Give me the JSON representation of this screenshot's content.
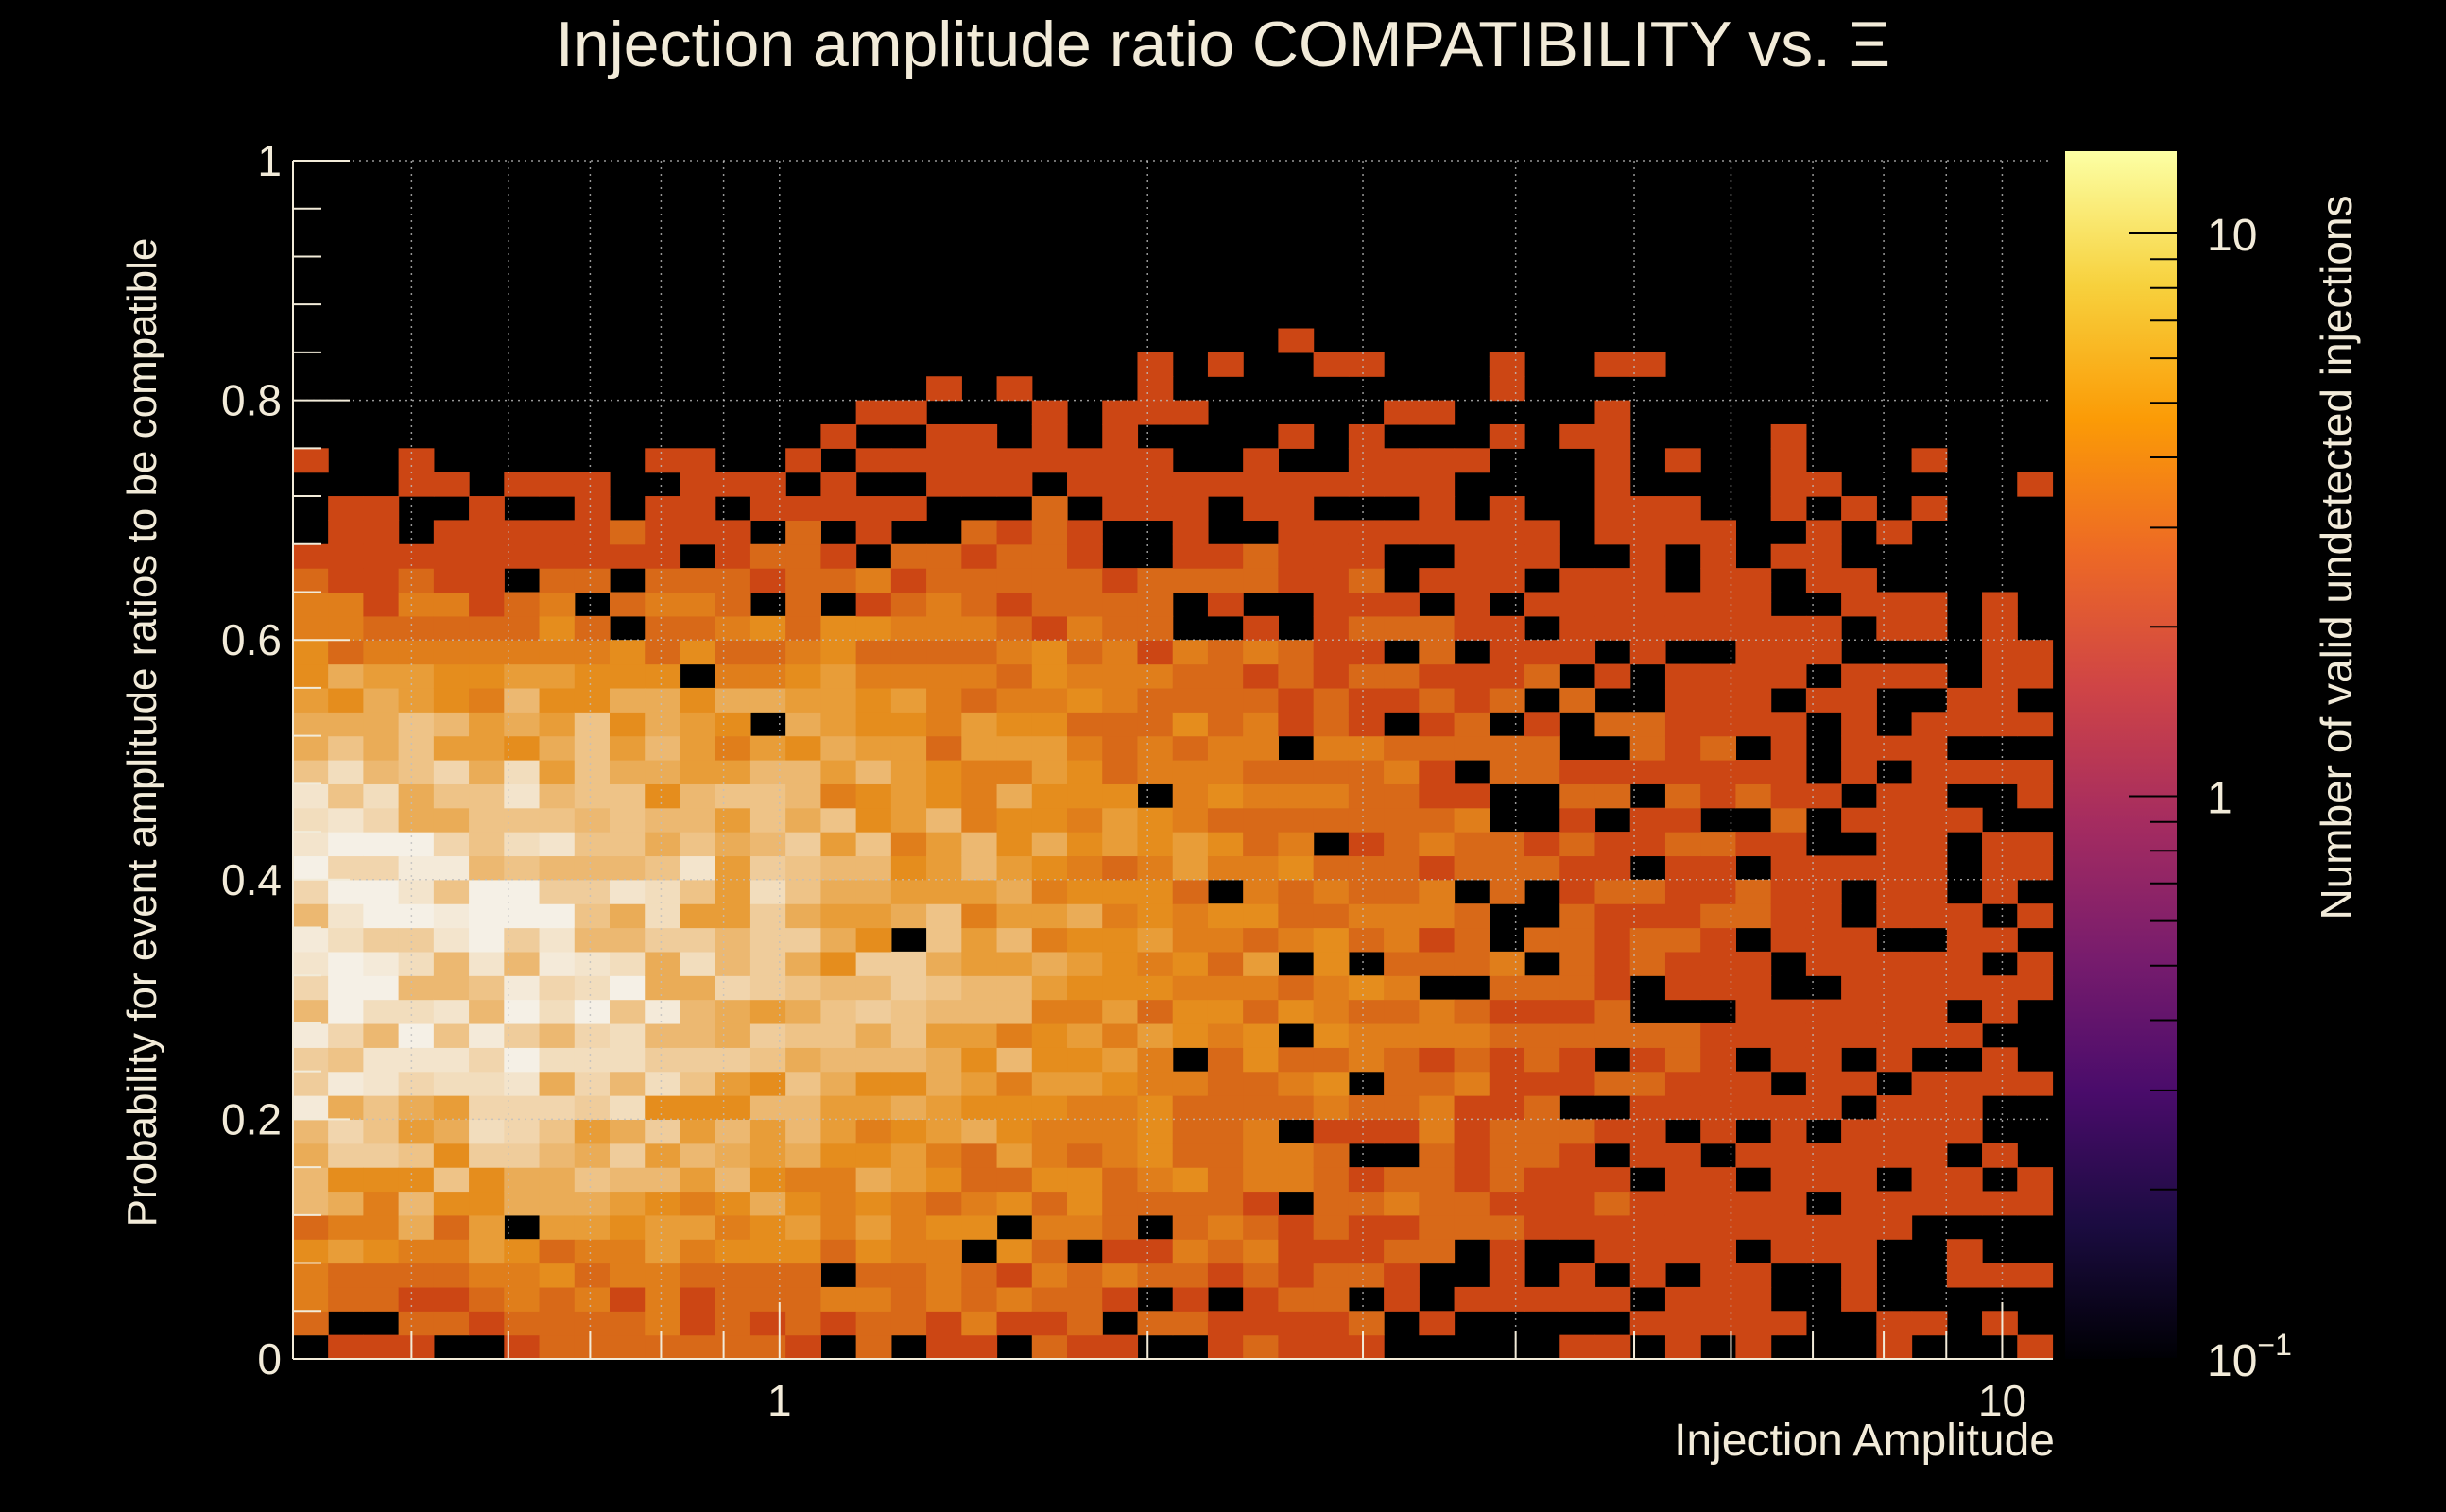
{
  "chart_data": {
    "type": "heatmap",
    "title": "Injection amplitude ratio COMPATIBILITY vs.  Ξ",
    "xlabel": "Injection Amplitude",
    "ylabel": "Probability for event amplitude ratios to be compatible",
    "colorbar_label": "Number of valid undetected injections",
    "x_scale": "log",
    "x_range": [
      0.4,
      11
    ],
    "y_range": [
      0,
      1
    ],
    "z_scale": "log",
    "z_range": [
      0.1,
      14
    ],
    "grid": true,
    "x_ticks": [
      {
        "value": 1,
        "label": "1"
      },
      {
        "value": 10,
        "label": "10"
      }
    ],
    "y_ticks": [
      {
        "value": 0,
        "label": "0"
      },
      {
        "value": 0.2,
        "label": "0.2"
      },
      {
        "value": 0.4,
        "label": "0.4"
      },
      {
        "value": 0.6,
        "label": "0.6"
      },
      {
        "value": 0.8,
        "label": "0.8"
      },
      {
        "value": 1,
        "label": "1"
      }
    ],
    "z_ticks": [
      {
        "value": 0.1,
        "label": "10",
        "exp": "−1"
      },
      {
        "value": 1,
        "label": "1",
        "exp": ""
      },
      {
        "value": 10,
        "label": "10",
        "exp": ""
      }
    ],
    "bins": {
      "nx": 50,
      "ny": 50,
      "x_log_min": -0.398,
      "x_log_max": 1.041,
      "y_min": 0,
      "y_max": 1,
      "model": {
        "peak_count": 12.5,
        "peak_log_x": -0.2,
        "peak_y": 0.34,
        "x_decay": 0.95,
        "y_width": 0.22,
        "description": "approximate reconstruction of the 2D histogram: counts highest near amplitude 0.6-1.5 and probability 0.2-0.5, falling off toward large amplitudes"
      }
    },
    "colormap": [
      "#000004",
      "#1b0c41",
      "#4a0c6b",
      "#781c6d",
      "#a52c60",
      "#cf4446",
      "#ed6925",
      "#fb9b06",
      "#f7d13d",
      "#fcffa4"
    ],
    "palette": {
      "background": "#000000",
      "text": "#f2ebd9",
      "grid": "#bfbfbf",
      "bin_low": "#cc4614",
      "bin_mid": "#e6901d",
      "bin_high": "#f5f0e6"
    }
  }
}
